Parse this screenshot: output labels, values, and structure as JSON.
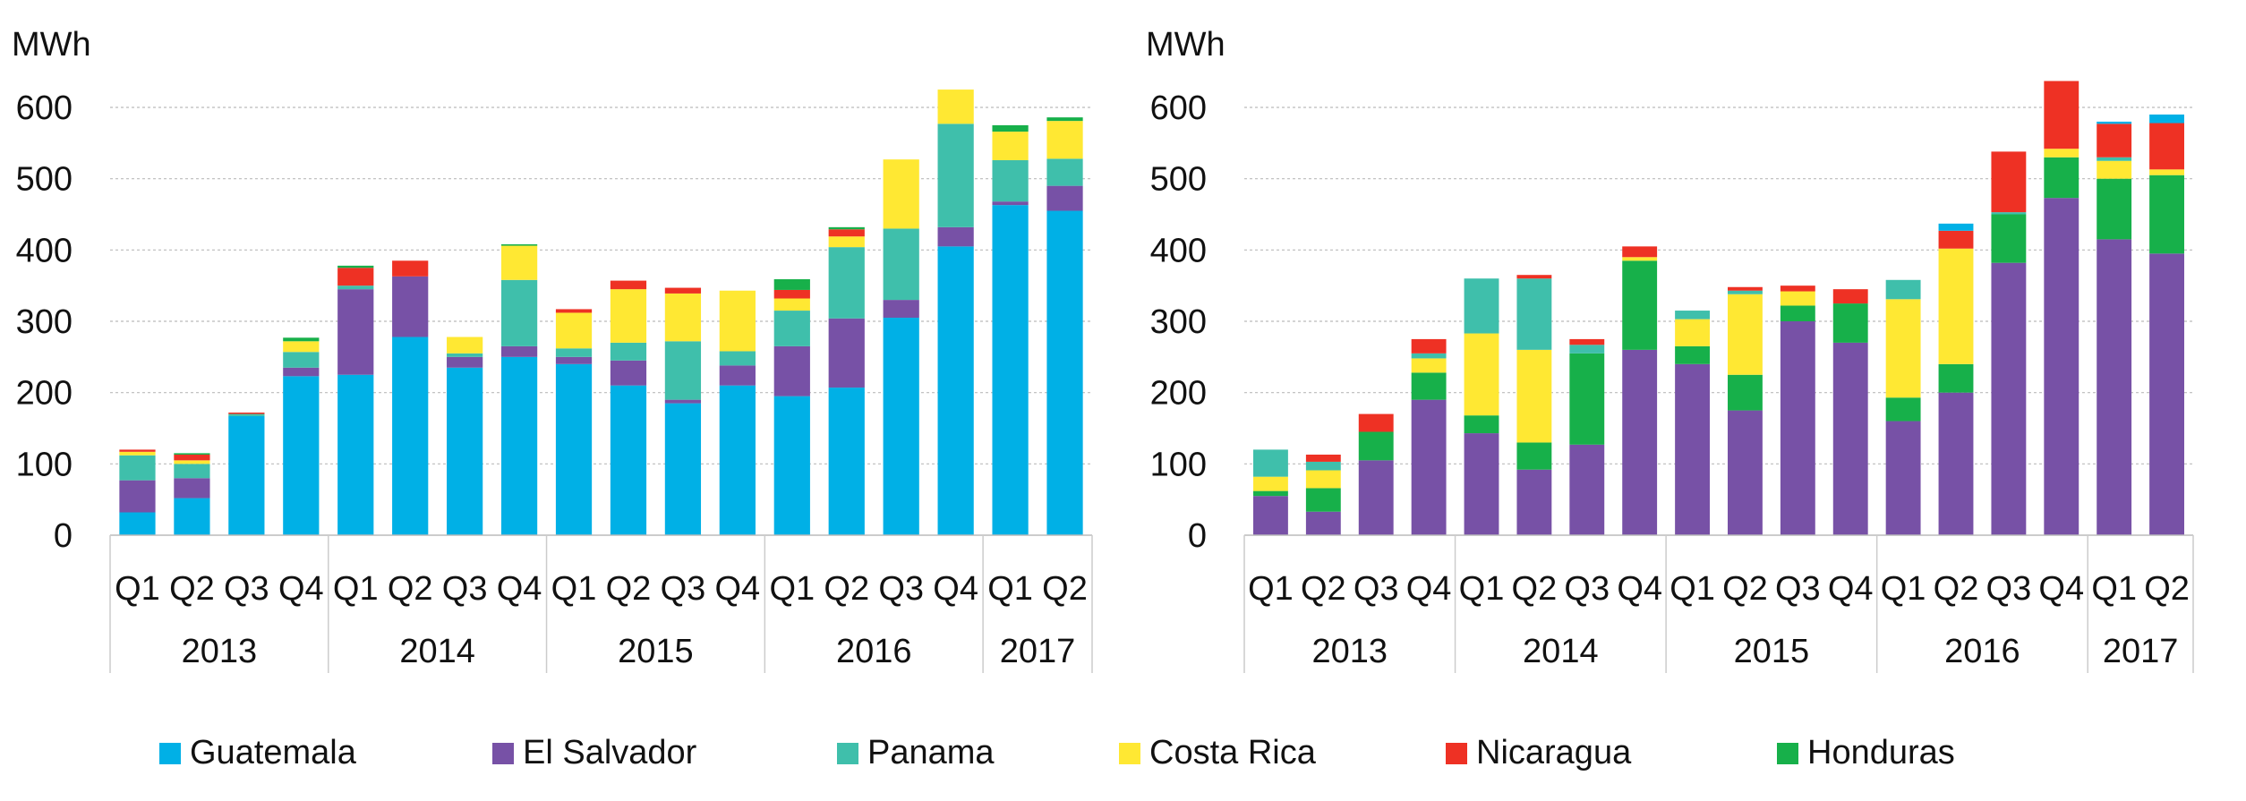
{
  "chart_data": [
    {
      "type": "bar",
      "stacked": true,
      "ylabel": "MWh",
      "ylim": [
        0,
        600
      ],
      "yticks": [
        0,
        100,
        200,
        300,
        400,
        500,
        600
      ],
      "grid": true,
      "categories": [
        "Q1",
        "Q2",
        "Q3",
        "Q4",
        "Q1",
        "Q2",
        "Q3",
        "Q4",
        "Q1",
        "Q2",
        "Q3",
        "Q4",
        "Q1",
        "Q2",
        "Q3",
        "Q4",
        "Q1",
        "Q2"
      ],
      "groups": [
        {
          "label": "2013",
          "count": 4
        },
        {
          "label": "2014",
          "count": 4
        },
        {
          "label": "2015",
          "count": 4
        },
        {
          "label": "2016",
          "count": 4
        },
        {
          "label": "2017",
          "count": 2
        }
      ],
      "series": [
        {
          "name": "Guatemala",
          "color": "#00b0e6",
          "values": [
            32,
            52,
            167,
            223,
            225,
            278,
            235,
            250,
            240,
            210,
            185,
            210,
            195,
            207,
            305,
            405,
            463,
            455
          ]
        },
        {
          "name": "El Salvador",
          "color": "#7751a6",
          "values": [
            45,
            28,
            0,
            12,
            120,
            85,
            15,
            15,
            10,
            35,
            5,
            28,
            70,
            97,
            25,
            27,
            5,
            35
          ]
        },
        {
          "name": "Panama",
          "color": "#3fbfab",
          "values": [
            35,
            20,
            3,
            22,
            5,
            0,
            5,
            93,
            12,
            25,
            82,
            20,
            50,
            100,
            100,
            145,
            58,
            38
          ]
        },
        {
          "name": "Costa Rica",
          "color": "#ffe833",
          "values": [
            5,
            5,
            0,
            15,
            0,
            0,
            23,
            48,
            50,
            75,
            67,
            85,
            17,
            15,
            97,
            48,
            40,
            53
          ]
        },
        {
          "name": "Nicaragua",
          "color": "#ee3124",
          "values": [
            3,
            8,
            2,
            0,
            25,
            22,
            0,
            0,
            5,
            12,
            8,
            0,
            12,
            10,
            0,
            0,
            0,
            0
          ]
        },
        {
          "name": "Honduras",
          "color": "#17b04a",
          "values": [
            0,
            2,
            0,
            5,
            3,
            0,
            0,
            2,
            0,
            0,
            0,
            0,
            15,
            3,
            0,
            0,
            9,
            5
          ]
        }
      ]
    },
    {
      "type": "bar",
      "stacked": true,
      "ylabel": "MWh",
      "ylim": [
        0,
        600
      ],
      "yticks": [
        0,
        100,
        200,
        300,
        400,
        500,
        600
      ],
      "grid": true,
      "categories": [
        "Q1",
        "Q2",
        "Q3",
        "Q4",
        "Q1",
        "Q2",
        "Q3",
        "Q4",
        "Q1",
        "Q2",
        "Q3",
        "Q4",
        "Q1",
        "Q2",
        "Q3",
        "Q4",
        "Q1",
        "Q2"
      ],
      "groups": [
        {
          "label": "2013",
          "count": 4
        },
        {
          "label": "2014",
          "count": 4
        },
        {
          "label": "2015",
          "count": 4
        },
        {
          "label": "2016",
          "count": 4
        },
        {
          "label": "2017",
          "count": 2
        }
      ],
      "series": [
        {
          "name": "El Salvador",
          "color": "#7751a6",
          "values": [
            55,
            33,
            105,
            190,
            143,
            92,
            127,
            260,
            240,
            175,
            300,
            270,
            160,
            200,
            382,
            473,
            415,
            395
          ]
        },
        {
          "name": "Honduras",
          "color": "#17b04a",
          "values": [
            7,
            33,
            40,
            38,
            25,
            38,
            128,
            125,
            25,
            50,
            22,
            55,
            33,
            40,
            68,
            57,
            85,
            110
          ]
        },
        {
          "name": "Costa Rica",
          "color": "#ffe833",
          "values": [
            20,
            25,
            0,
            20,
            115,
            130,
            0,
            5,
            38,
            113,
            20,
            0,
            138,
            162,
            0,
            12,
            25,
            8
          ]
        },
        {
          "name": "Panama",
          "color": "#3fbfab",
          "values": [
            38,
            12,
            0,
            7,
            77,
            100,
            12,
            0,
            12,
            5,
            0,
            0,
            27,
            0,
            3,
            0,
            5,
            0
          ]
        },
        {
          "name": "Nicaragua",
          "color": "#ee3124",
          "values": [
            0,
            10,
            25,
            20,
            0,
            5,
            8,
            15,
            0,
            5,
            8,
            20,
            0,
            25,
            85,
            95,
            47,
            65
          ]
        },
        {
          "name": "Guatemala",
          "color": "#00b0e6",
          "values": [
            0,
            0,
            0,
            0,
            0,
            0,
            0,
            0,
            0,
            0,
            0,
            0,
            0,
            10,
            0,
            0,
            3,
            12
          ]
        }
      ]
    }
  ],
  "legend": {
    "placement": "bottom",
    "items": [
      {
        "name": "Guatemala",
        "color": "#00b0e6"
      },
      {
        "name": "El Salvador",
        "color": "#7751a6"
      },
      {
        "name": "Panama",
        "color": "#3fbfab"
      },
      {
        "name": "Costa Rica",
        "color": "#ffe833"
      },
      {
        "name": "Nicaragua",
        "color": "#ee3124"
      },
      {
        "name": "Honduras",
        "color": "#17b04a"
      }
    ]
  }
}
